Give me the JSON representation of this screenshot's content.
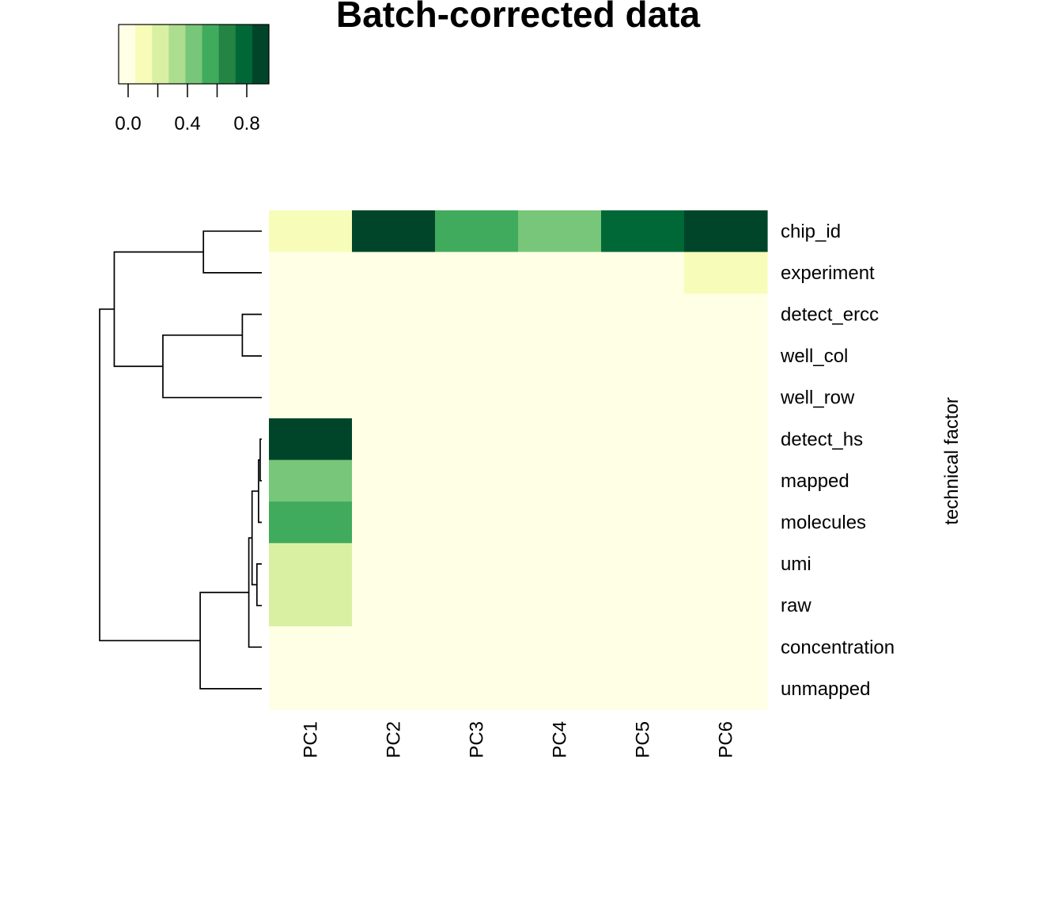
{
  "chart_data": {
    "type": "heatmap",
    "title": "Batch-corrected data",
    "ylabel": "technical factor",
    "columns": [
      "PC1",
      "PC2",
      "PC3",
      "PC4",
      "PC5",
      "PC6"
    ],
    "rows": [
      "chip_id",
      "experiment",
      "detect_ercc",
      "well_col",
      "well_row",
      "detect_hs",
      "mapped",
      "molecules",
      "umi",
      "raw",
      "concentration",
      "unmapped"
    ],
    "values": [
      [
        0.15,
        0.95,
        0.65,
        0.45,
        0.85,
        0.95
      ],
      [
        0.05,
        0.05,
        0.05,
        0.05,
        0.05,
        0.15
      ],
      [
        0.05,
        0.05,
        0.05,
        0.05,
        0.05,
        0.05
      ],
      [
        0.05,
        0.05,
        0.05,
        0.05,
        0.05,
        0.05
      ],
      [
        0.05,
        0.05,
        0.05,
        0.05,
        0.05,
        0.05
      ],
      [
        0.95,
        0.05,
        0.05,
        0.05,
        0.05,
        0.05
      ],
      [
        0.45,
        0.05,
        0.05,
        0.05,
        0.05,
        0.05
      ],
      [
        0.65,
        0.05,
        0.05,
        0.05,
        0.05,
        0.05
      ],
      [
        0.25,
        0.05,
        0.05,
        0.05,
        0.05,
        0.05
      ],
      [
        0.25,
        0.05,
        0.05,
        0.05,
        0.05,
        0.05
      ],
      [
        0.05,
        0.05,
        0.05,
        0.05,
        0.05,
        0.05
      ],
      [
        0.05,
        0.05,
        0.05,
        0.05,
        0.05,
        0.05
      ]
    ],
    "color_scale": {
      "range": [
        0,
        1
      ],
      "colors": [
        "#FFFFE5",
        "#F7FCB9",
        "#D9F0A3",
        "#ADDD8E",
        "#78C679",
        "#41AB5D",
        "#238443",
        "#006837",
        "#004529"
      ],
      "ticks": [
        0.0,
        0.4,
        0.8
      ],
      "tick_labels": [
        "0.0",
        "0.4",
        "0.8"
      ],
      "minor_ticks": [
        0.0,
        0.2,
        0.4,
        0.6,
        0.8
      ]
    },
    "dendrogram": {
      "side": "left",
      "merges": [
        {
          "id": "a",
          "left": "detect_hs",
          "right": "mapped",
          "height": 0.01
        },
        {
          "id": "b",
          "left": "a",
          "right": "molecules",
          "height": 0.02
        },
        {
          "id": "c",
          "left": "umi",
          "right": "raw",
          "height": 0.03
        },
        {
          "id": "d",
          "left": "b",
          "right": "c",
          "height": 0.06
        },
        {
          "id": "e",
          "left": "d",
          "right": "concentration",
          "height": 0.08
        },
        {
          "id": "f",
          "left": "detect_ercc",
          "right": "well_col",
          "height": 0.12
        },
        {
          "id": "g",
          "left": "e",
          "right": "unmapped",
          "height": 0.38
        },
        {
          "id": "h",
          "left": "f",
          "right": "well_row",
          "height": 0.61
        },
        {
          "id": "i",
          "left": "chip_id",
          "right": "experiment",
          "height": 0.36
        },
        {
          "id": "j",
          "left": "i",
          "right": "h",
          "height": 0.91
        },
        {
          "id": "k",
          "left": "j",
          "right": "g",
          "height": 1.0
        }
      ]
    }
  }
}
